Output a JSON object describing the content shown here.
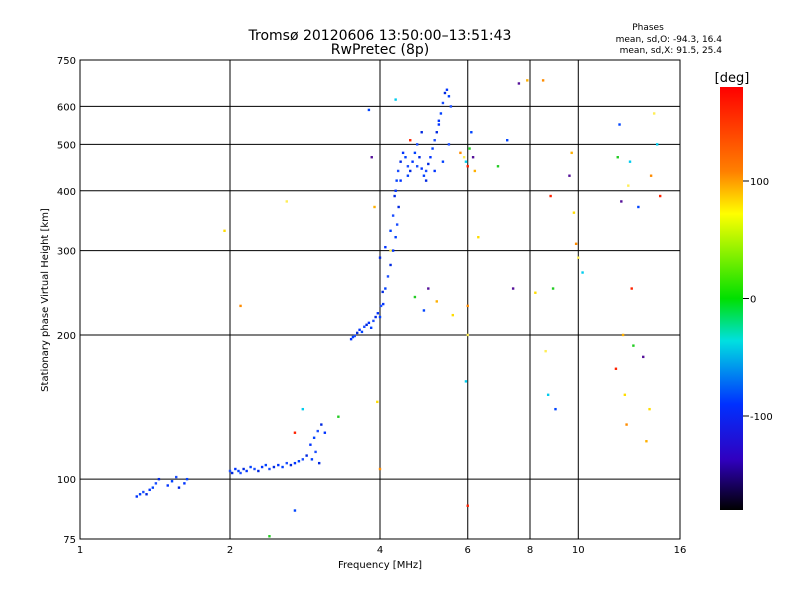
{
  "chart_data": {
    "type": "scatter",
    "title": "Tromsø 20120606 13:50:00–13:51:43",
    "subtitle": "RwPretec (8p)",
    "xlabel": "Frequency [MHz]",
    "ylabel": "Stationary phase Virtual Height [km]",
    "x_scale": "log",
    "y_scale": "log",
    "xlim": [
      1,
      16
    ],
    "ylim": [
      75,
      750
    ],
    "x_ticks": [
      1,
      2,
      4,
      6,
      8,
      10,
      16
    ],
    "x_tick_labels": [
      "1",
      "2",
      "4",
      "6",
      "8",
      "10",
      "16"
    ],
    "y_ticks": [
      75,
      100,
      200,
      300,
      400,
      500,
      600,
      750
    ],
    "y_tick_labels": [
      "75",
      "100",
      "200",
      "300",
      "400",
      "500",
      "600",
      "750"
    ],
    "grid": true,
    "phase_stats": {
      "heading": "Phases",
      "line_o": "mean, sd,O: -94.3, 16.4",
      "line_x": "mean, sd,X:  91.5, 25.4"
    },
    "colorbar": {
      "label": "[deg]",
      "range": [
        -180,
        180
      ],
      "ticks": [
        100,
        0,
        -100
      ],
      "tick_labels": [
        "100",
        "0",
        "-100"
      ]
    },
    "series": [
      {
        "points": [
          [
            1.3,
            92
          ],
          [
            1.32,
            93
          ],
          [
            1.34,
            94
          ],
          [
            1.36,
            93
          ],
          [
            1.38,
            95
          ],
          [
            1.4,
            96
          ],
          [
            1.42,
            98
          ],
          [
            1.44,
            100
          ],
          [
            1.5,
            97
          ],
          [
            1.53,
            99
          ],
          [
            1.56,
            101
          ],
          [
            1.58,
            96
          ],
          [
            1.62,
            98
          ],
          [
            1.64,
            100
          ],
          [
            2.0,
            104
          ],
          [
            2.02,
            103
          ],
          [
            2.05,
            105
          ],
          [
            2.08,
            104
          ],
          [
            2.1,
            103
          ],
          [
            2.13,
            105
          ],
          [
            2.16,
            104
          ],
          [
            2.2,
            106
          ],
          [
            2.24,
            105
          ],
          [
            2.28,
            104
          ],
          [
            2.32,
            106
          ],
          [
            2.36,
            107
          ],
          [
            2.4,
            105
          ],
          [
            2.45,
            106
          ],
          [
            2.5,
            107
          ],
          [
            2.55,
            106
          ],
          [
            2.6,
            108
          ],
          [
            2.65,
            107
          ],
          [
            2.7,
            108
          ],
          [
            2.75,
            109
          ],
          [
            2.8,
            110
          ],
          [
            2.85,
            112
          ],
          [
            2.9,
            118
          ],
          [
            2.95,
            122
          ],
          [
            3.0,
            126
          ],
          [
            3.05,
            130
          ],
          [
            3.1,
            125
          ],
          [
            2.92,
            110
          ],
          [
            2.97,
            114
          ],
          [
            3.02,
            108
          ],
          [
            3.5,
            196
          ],
          [
            3.53,
            198
          ],
          [
            3.56,
            199
          ],
          [
            3.6,
            202
          ],
          [
            3.64,
            205
          ],
          [
            3.68,
            203
          ],
          [
            3.72,
            208
          ],
          [
            3.76,
            210
          ],
          [
            3.8,
            212
          ],
          [
            3.84,
            207
          ],
          [
            3.88,
            214
          ],
          [
            3.92,
            218
          ],
          [
            3.96,
            222
          ],
          [
            4.0,
            218
          ],
          [
            4.02,
            230
          ],
          [
            4.05,
            246
          ],
          [
            4.06,
            232
          ],
          [
            4.1,
            250
          ],
          [
            4.15,
            265
          ],
          [
            4.2,
            280
          ],
          [
            4.25,
            300
          ],
          [
            4.3,
            320
          ],
          [
            4.33,
            340
          ],
          [
            4.36,
            370
          ],
          [
            4.3,
            400
          ],
          [
            4.32,
            420
          ],
          [
            4.35,
            440
          ],
          [
            4.4,
            460
          ],
          [
            4.45,
            480
          ],
          [
            4.5,
            470
          ],
          [
            4.55,
            450
          ],
          [
            4.6,
            440
          ],
          [
            4.65,
            460
          ],
          [
            4.7,
            480
          ],
          [
            4.75,
            500
          ],
          [
            4.8,
            470
          ],
          [
            4.85,
            445
          ],
          [
            4.9,
            430
          ],
          [
            4.95,
            440
          ],
          [
            5.0,
            455
          ],
          [
            5.05,
            470
          ],
          [
            5.1,
            490
          ],
          [
            5.15,
            510
          ],
          [
            5.2,
            530
          ],
          [
            5.25,
            550
          ],
          [
            5.3,
            580
          ],
          [
            5.35,
            610
          ],
          [
            5.4,
            640
          ],
          [
            5.45,
            650
          ],
          [
            5.5,
            630
          ],
          [
            5.55,
            600
          ],
          [
            4.0,
            290
          ],
          [
            4.1,
            305
          ],
          [
            4.2,
            330
          ],
          [
            4.25,
            355
          ],
          [
            4.28,
            390
          ],
          [
            4.4,
            420
          ],
          [
            4.55,
            430
          ],
          [
            4.75,
            450
          ],
          [
            4.95,
            420
          ],
          [
            5.15,
            440
          ],
          [
            5.35,
            460
          ],
          [
            5.5,
            500
          ],
          [
            4.85,
            530
          ],
          [
            5.25,
            560
          ]
        ]
      },
      {
        "points": [
          [
            1.95,
            330
          ],
          [
            2.1,
            230
          ],
          [
            2.6,
            380
          ],
          [
            2.8,
            140
          ],
          [
            2.7,
            125
          ],
          [
            3.3,
            135
          ],
          [
            3.8,
            590
          ],
          [
            3.85,
            470
          ],
          [
            3.9,
            370
          ],
          [
            3.95,
            145
          ],
          [
            4.0,
            105
          ],
          [
            4.2,
            300
          ],
          [
            4.3,
            620
          ],
          [
            4.6,
            510
          ],
          [
            4.7,
            240
          ],
          [
            4.9,
            225
          ],
          [
            5.0,
            250
          ],
          [
            5.2,
            235
          ],
          [
            5.6,
            220
          ],
          [
            5.8,
            480
          ],
          [
            5.9,
            470
          ],
          [
            5.95,
            460
          ],
          [
            6.0,
            450
          ],
          [
            6.05,
            490
          ],
          [
            6.1,
            530
          ],
          [
            6.15,
            470
          ],
          [
            6.2,
            440
          ],
          [
            6.3,
            320
          ],
          [
            6.0,
            230
          ],
          [
            6.0,
            200
          ],
          [
            5.95,
            160
          ],
          [
            6.0,
            88
          ],
          [
            6.9,
            450
          ],
          [
            7.2,
            510
          ],
          [
            7.6,
            670
          ],
          [
            7.9,
            680
          ],
          [
            8.2,
            245
          ],
          [
            8.5,
            680
          ],
          [
            8.6,
            185
          ],
          [
            8.7,
            150
          ],
          [
            8.8,
            390
          ],
          [
            8.9,
            250
          ],
          [
            9.0,
            140
          ],
          [
            9.6,
            430
          ],
          [
            9.7,
            480
          ],
          [
            9.8,
            360
          ],
          [
            9.9,
            310
          ],
          [
            10.0,
            290
          ],
          [
            10.2,
            270
          ],
          [
            11.9,
            170
          ],
          [
            12.0,
            470
          ],
          [
            12.1,
            550
          ],
          [
            12.2,
            380
          ],
          [
            12.3,
            200
          ],
          [
            12.4,
            150
          ],
          [
            12.5,
            130
          ],
          [
            12.6,
            410
          ],
          [
            12.7,
            460
          ],
          [
            12.8,
            250
          ],
          [
            12.9,
            190
          ],
          [
            13.2,
            370
          ],
          [
            13.5,
            180
          ],
          [
            13.7,
            120
          ],
          [
            13.9,
            140
          ],
          [
            14.0,
            430
          ],
          [
            14.2,
            580
          ],
          [
            14.4,
            500
          ],
          [
            14.6,
            390
          ],
          [
            2.4,
            76
          ],
          [
            2.7,
            86
          ],
          [
            7.4,
            250
          ]
        ]
      }
    ]
  }
}
